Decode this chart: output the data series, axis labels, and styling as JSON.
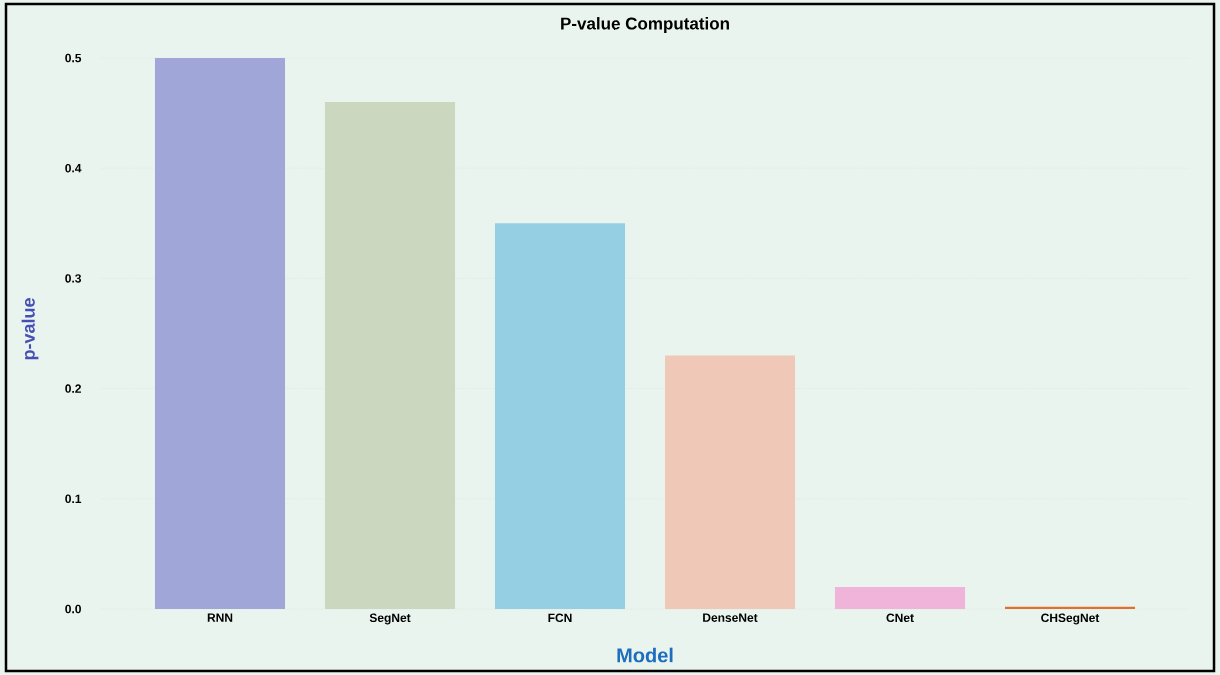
{
  "chart_data": {
    "type": "bar",
    "title": "P-value Computation",
    "xlabel": "Model",
    "ylabel": "p-value",
    "categories": [
      "RNN",
      "SegNet",
      "FCN",
      "DenseNet",
      "CNet",
      "CHSegNet"
    ],
    "values": [
      0.5,
      0.46,
      0.35,
      0.23,
      0.02,
      0.002
    ],
    "colors": [
      "#a0a6d8",
      "#cbd8bf",
      "#94cfe3",
      "#f0c8b8",
      "#f0b3d9",
      "#e07030"
    ],
    "ylim": [
      0,
      0.5
    ],
    "yticks": [
      {
        "value": 0,
        "label": "0.0"
      },
      0.1,
      0.2,
      0.3,
      0.4,
      0.5
    ],
    "grid": "y"
  }
}
